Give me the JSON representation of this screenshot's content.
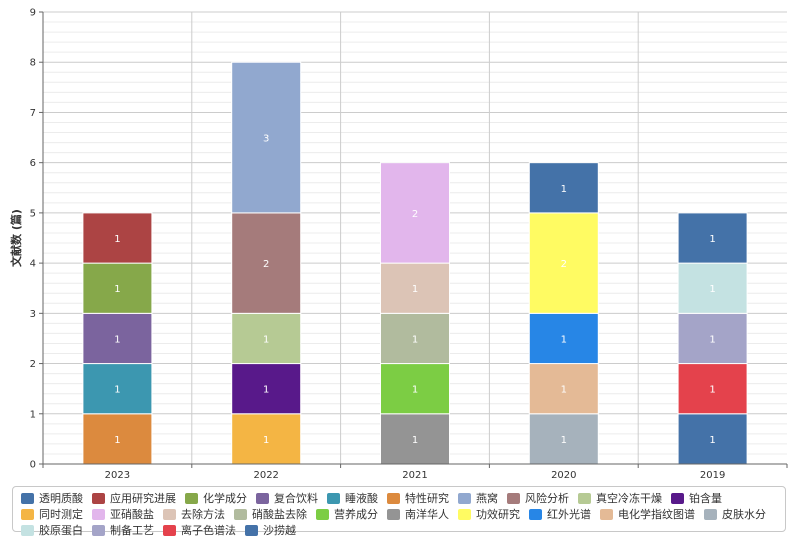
{
  "chart_data": {
    "type": "bar",
    "stacked": true,
    "categories": [
      "2023",
      "2022",
      "2021",
      "2020",
      "2019"
    ],
    "ylabel": "文献数 (篇)",
    "ylim": [
      0,
      9
    ],
    "yticks": [
      0,
      1,
      2,
      3,
      4,
      5,
      6,
      7,
      8,
      9
    ],
    "grid": true,
    "legend_position": "bottom",
    "stacks": [
      [
        {
          "series": "特性研究",
          "value": 1
        },
        {
          "series": "睡液酸",
          "value": 1
        },
        {
          "series": "复合饮料",
          "value": 1
        },
        {
          "series": "化学成分",
          "value": 1
        },
        {
          "series": "应用研究进展",
          "value": 1
        }
      ],
      [
        {
          "series": "同时测定",
          "value": 1
        },
        {
          "series": "铂含量",
          "value": 1
        },
        {
          "series": "真空冷冻干燥",
          "value": 1
        },
        {
          "series": "风险分析",
          "value": 2
        },
        {
          "series": "燕窝",
          "value": 3
        }
      ],
      [
        {
          "series": "南洋华人",
          "value": 1
        },
        {
          "series": "营养成分",
          "value": 1
        },
        {
          "series": "硝酸盐去除",
          "value": 1
        },
        {
          "series": "去除方法",
          "value": 1
        },
        {
          "series": "亚硝酸盐",
          "value": 2
        }
      ],
      [
        {
          "series": "皮肤水分",
          "value": 1
        },
        {
          "series": "电化学指纹图谱",
          "value": 1
        },
        {
          "series": "红外光谱",
          "value": 1
        },
        {
          "series": "功效研究",
          "value": 2
        },
        {
          "series": "透明质酸",
          "value": 1
        }
      ],
      [
        {
          "series": "沙捞越",
          "value": 1
        },
        {
          "series": "离子色谱法",
          "value": 1
        },
        {
          "series": "制备工艺",
          "value": 1
        },
        {
          "series": "胶原蛋白",
          "value": 1
        },
        {
          "series": "透明质酸",
          "value": 1
        }
      ]
    ],
    "series": [
      {
        "name": "透明质酸",
        "color": "#4472a8"
      },
      {
        "name": "应用研究进展",
        "color": "#ac4444"
      },
      {
        "name": "化学成分",
        "color": "#86a84a"
      },
      {
        "name": "复合饮料",
        "color": "#7b649e"
      },
      {
        "name": "睡液酸",
        "color": "#3c97b0"
      },
      {
        "name": "特性研究",
        "color": "#dc8a3e"
      },
      {
        "name": "燕窝",
        "color": "#91a8cf"
      },
      {
        "name": "风险分析",
        "color": "#a57b7b"
      },
      {
        "name": "真空冷冻干燥",
        "color": "#b6ca94"
      },
      {
        "name": "铂含量",
        "color": "#58198a"
      },
      {
        "name": "同时测定",
        "color": "#f4b544"
      },
      {
        "name": "亚硝酸盐",
        "color": "#e2b6ec"
      },
      {
        "name": "去除方法",
        "color": "#dcc4b6"
      },
      {
        "name": "硝酸盐去除",
        "color": "#b1bb9e"
      },
      {
        "name": "营养成分",
        "color": "#7ccd44"
      },
      {
        "name": "南洋华人",
        "color": "#949494"
      },
      {
        "name": "功效研究",
        "color": "#fffb62"
      },
      {
        "name": "红外光谱",
        "color": "#2786e6"
      },
      {
        "name": "电化学指纹图谱",
        "color": "#e4ba96"
      },
      {
        "name": "皮肤水分",
        "color": "#a6b2bc"
      },
      {
        "name": "胶原蛋白",
        "color": "#c4e2e2"
      },
      {
        "name": "制备工艺",
        "color": "#a4a4c8"
      },
      {
        "name": "离子色谱法",
        "color": "#e4424c"
      },
      {
        "name": "沙捞越",
        "color": "#4472a8"
      }
    ]
  }
}
